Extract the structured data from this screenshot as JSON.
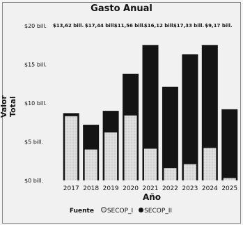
{
  "chart_data": {
    "type": "bar",
    "stacked": true,
    "title": "Gasto Anual",
    "xlabel": "Año",
    "ylabel": "Valor Total",
    "categories": [
      "2017",
      "2018",
      "2019",
      "2020",
      "2021",
      "2022",
      "2023",
      "2024",
      "2025"
    ],
    "series": [
      {
        "name": "SECOP_I",
        "color": "#d8d8d8",
        "values": [
          8.3,
          4.0,
          6.2,
          8.4,
          4.1,
          1.6,
          2.1,
          4.2,
          0.3
        ]
      },
      {
        "name": "SECOP_II",
        "color": "#141414",
        "values": [
          0.4,
          3.2,
          2.8,
          5.4,
          13.4,
          10.5,
          14.2,
          13.3,
          8.9
        ]
      }
    ],
    "ylim": [
      0,
      20
    ],
    "yticks": [
      {
        "value": 0,
        "label": "$0 bill."
      },
      {
        "value": 5,
        "label": "$5 bill."
      },
      {
        "value": 10,
        "label": "$10 bill."
      },
      {
        "value": 15,
        "label": "$15 bill."
      },
      {
        "value": 20,
        "label": "$20 bill."
      }
    ],
    "top_labels": [
      "$13,62 bill.",
      "$17,44 bill.",
      "$11,56 bill.",
      "$16,12 bill.",
      "$17,33 bill.",
      "$9,17 bill."
    ],
    "legend": {
      "title": "Fuente",
      "position": "bottom"
    },
    "grid": false
  }
}
